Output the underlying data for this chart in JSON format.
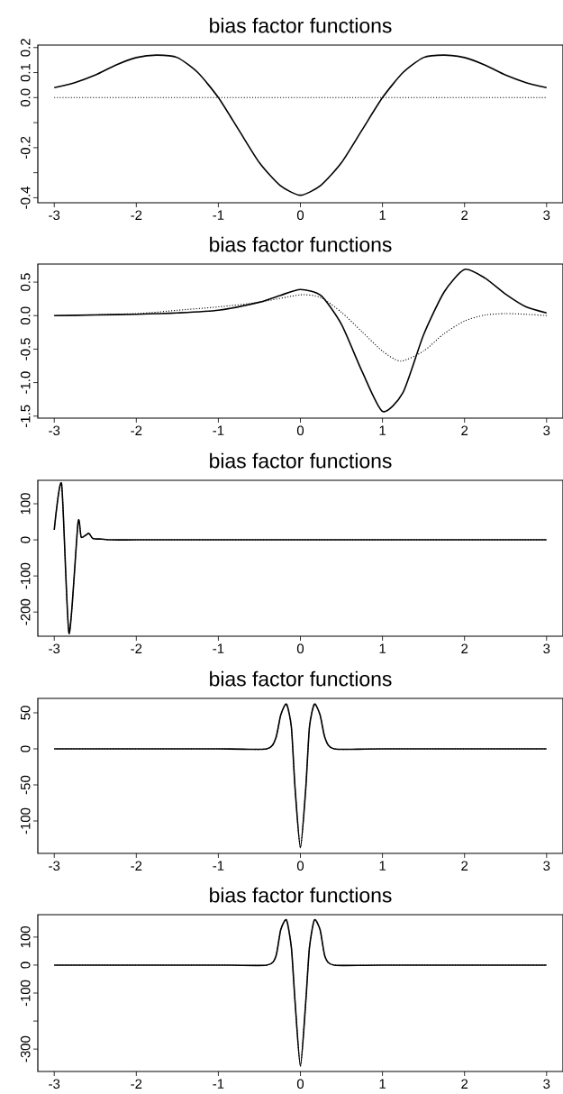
{
  "chart_data": [
    {
      "type": "line",
      "title": "bias factor functions",
      "xlim": [
        -3.2,
        3.2
      ],
      "ylim": [
        -0.42,
        0.21
      ],
      "xticks": [
        -3,
        -2,
        -1,
        0,
        1,
        2,
        3
      ],
      "yticks": [
        -0.4,
        {
          "value": -0.3,
          "label": null
        },
        -0.2,
        {
          "value": -0.1,
          "label": null
        },
        {
          "value": 0,
          "label": "0.0"
        },
        0.1,
        0.2
      ],
      "series": [
        {
          "color": "#000000",
          "line_style": "solid",
          "x": [
            -3,
            -2.75,
            -2.5,
            -2.25,
            -2,
            -1.75,
            -1.5,
            -1.25,
            -1,
            -0.75,
            -0.5,
            -0.25,
            0,
            0.25,
            0.5,
            0.75,
            1,
            1.25,
            1.5,
            1.75,
            2,
            2.25,
            2.5,
            2.75,
            3
          ],
          "values": [
            0.04,
            0.06,
            0.09,
            0.13,
            0.16,
            0.17,
            0.16,
            0.1,
            0,
            -0.13,
            -0.26,
            -0.35,
            -0.39,
            -0.35,
            -0.26,
            -0.13,
            0,
            0.1,
            0.16,
            0.17,
            0.16,
            0.13,
            0.09,
            0.06,
            0.04
          ]
        },
        {
          "color": "#000000",
          "line_style": "dotted",
          "x": [
            -3,
            0,
            3
          ],
          "values": [
            0,
            0,
            0
          ]
        }
      ]
    },
    {
      "type": "line",
      "title": "bias factor functions",
      "xlim": [
        -3.2,
        3.2
      ],
      "ylim": [
        -1.53,
        0.77
      ],
      "xticks": [
        -3,
        -2,
        -1,
        0,
        1,
        2,
        3
      ],
      "yticks": [
        -1.5,
        {
          "value": -1,
          "label": "-1.0"
        },
        -0.5,
        {
          "value": 0,
          "label": "0.0"
        },
        0.5
      ],
      "series": [
        {
          "color": "#000000",
          "line_style": "solid",
          "x": [
            -3,
            -2.5,
            -2,
            -1.5,
            -1,
            -0.5,
            -0.25,
            0,
            0.25,
            0.5,
            0.75,
            1,
            1.25,
            1.5,
            1.75,
            2,
            2.25,
            2.5,
            2.75,
            3
          ],
          "values": [
            0,
            0.01,
            0.02,
            0.04,
            0.08,
            0.2,
            0.3,
            0.39,
            0.3,
            -0.13,
            -0.83,
            -1.43,
            -1.15,
            -0.29,
            0.35,
            0.69,
            0.56,
            0.32,
            0.13,
            0.04
          ]
        },
        {
          "color": "#000000",
          "line_style": "dotted",
          "x": [
            -3,
            -2,
            -1.5,
            -1,
            -0.5,
            0,
            0.25,
            0.5,
            0.75,
            1,
            1.22,
            1.5,
            1.75,
            2,
            2.25,
            2.5,
            2.75,
            3
          ],
          "values": [
            0,
            0.03,
            0.08,
            0.13,
            0.2,
            0.31,
            0.27,
            0.05,
            -0.24,
            -0.53,
            -0.68,
            -0.53,
            -0.27,
            -0.08,
            0.01,
            0.03,
            0.02,
            0
          ]
        }
      ]
    },
    {
      "type": "line",
      "title": "bias factor functions",
      "xlim": [
        -3.2,
        3.2
      ],
      "ylim": [
        -267,
        165
      ],
      "xticks": [
        -3,
        -2,
        -1,
        0,
        1,
        2,
        3
      ],
      "yticks": [
        -200,
        -100,
        0,
        100
      ],
      "series": [
        {
          "color": "#000000",
          "line_style": "solid",
          "x": [
            -3,
            -2.91,
            -2.82,
            -2.71,
            -2.67,
            -2.58,
            -2.53,
            -2.42,
            -2.3,
            -2,
            -1,
            0,
            1,
            2,
            3
          ],
          "values": [
            28,
            154,
            -259,
            48,
            7,
            18,
            4,
            2,
            0,
            0,
            0,
            0,
            0,
            0,
            0
          ]
        },
        {
          "color": "#000000",
          "line_style": "dotted",
          "x": [
            -3,
            -2.91,
            -2.82,
            -2.71,
            -2.67,
            -2.58,
            -2.53,
            -2.42,
            -2.3,
            -2,
            -1,
            0,
            1,
            2,
            3
          ],
          "values": [
            28,
            154,
            -259,
            48,
            7,
            18,
            4,
            2,
            0,
            0,
            0,
            0,
            0,
            0,
            0
          ]
        }
      ]
    },
    {
      "type": "line",
      "title": "bias factor functions",
      "xlim": [
        -3.2,
        3.2
      ],
      "ylim": [
        -145,
        70
      ],
      "xticks": [
        -3,
        -2,
        -1,
        0,
        1,
        2,
        3
      ],
      "yticks": [
        -100,
        -50,
        0,
        50
      ],
      "series": [
        {
          "color": "#000000",
          "line_style": "solid",
          "x": [
            -3,
            -1,
            -0.41,
            -0.3,
            -0.24,
            -0.17,
            -0.11,
            -0.065,
            0,
            0.065,
            0.11,
            0.17,
            0.24,
            0.3,
            0.41,
            1,
            3
          ],
          "values": [
            0,
            0,
            0,
            15,
            47,
            62,
            30,
            -55,
            -137,
            -55,
            30,
            62,
            47,
            15,
            0,
            0,
            0
          ]
        },
        {
          "color": "#000000",
          "line_style": "dotted",
          "x": [
            -3,
            -1,
            -0.41,
            -0.3,
            -0.24,
            -0.17,
            -0.11,
            -0.065,
            0,
            0.065,
            0.11,
            0.17,
            0.24,
            0.3,
            0.41,
            1,
            3
          ],
          "values": [
            0,
            0,
            0,
            15,
            47,
            62,
            30,
            -55,
            -137,
            -55,
            30,
            62,
            47,
            15,
            0,
            0,
            0
          ]
        }
      ]
    },
    {
      "type": "line",
      "title": "bias factor functions",
      "xlim": [
        -3.2,
        3.2
      ],
      "ylim": [
        -380,
        180
      ],
      "xticks": [
        -3,
        -2,
        -1,
        0,
        1,
        2,
        3
      ],
      "yticks": [
        -300,
        {
          "value": -200,
          "label": null
        },
        -100,
        0,
        100
      ],
      "series": [
        {
          "color": "#000000",
          "line_style": "solid",
          "x": [
            -3,
            -1,
            -0.41,
            -0.3,
            -0.24,
            -0.17,
            -0.11,
            -0.065,
            0,
            0.065,
            0.11,
            0.17,
            0.24,
            0.3,
            0.41,
            1,
            3
          ],
          "values": [
            0,
            0,
            0,
            30,
            126,
            161,
            62,
            -132,
            -361,
            -132,
            62,
            161,
            126,
            30,
            0,
            0,
            0
          ]
        },
        {
          "color": "#000000",
          "line_style": "dotted",
          "x": [
            -3,
            -1,
            -0.41,
            -0.3,
            -0.24,
            -0.17,
            -0.11,
            -0.065,
            0,
            0.065,
            0.11,
            0.17,
            0.24,
            0.3,
            0.41,
            1,
            3
          ],
          "values": [
            0,
            0,
            0,
            30,
            126,
            161,
            62,
            -132,
            -361,
            -132,
            62,
            161,
            126,
            30,
            0,
            0,
            0
          ]
        }
      ]
    }
  ]
}
